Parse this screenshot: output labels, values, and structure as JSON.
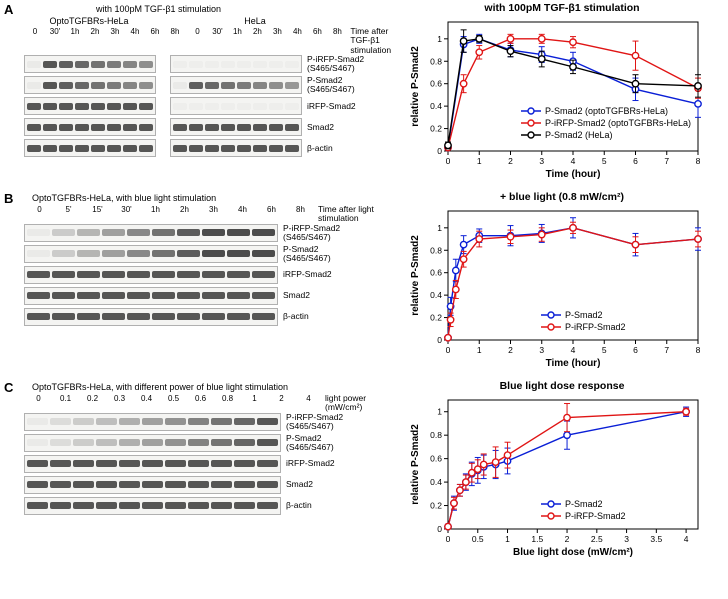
{
  "colors": {
    "blue": "#0a1fd6",
    "red": "#e01515",
    "black": "#000000",
    "grid": "#000000",
    "gelBorder": "#b0b0b0"
  },
  "A": {
    "rowLetter": "A",
    "topCaption": "with 100pM TGF-β1 stimulation",
    "subLeft": "OptoTGFBRs-HeLa",
    "subRight": "HeLa",
    "sideCaption": "Time after\nTGF-β1 stimulation",
    "lanesLeft": [
      "0",
      "30'",
      "1h",
      "2h",
      "3h",
      "4h",
      "6h",
      "8h"
    ],
    "lanesRight": [
      "0",
      "30'",
      "1h",
      "2h",
      "3h",
      "4h",
      "6h",
      "8h"
    ],
    "gelLabels": [
      "P-iRFP-Smad2\n(S465/S467)",
      "P-Smad2\n(S465/S467)",
      "iRFP-Smad2",
      "Smad2",
      "β-actin"
    ],
    "laneWidthPx": 18,
    "chart": {
      "title": "with 100pM TGF-β1 stimulation",
      "xlabel": "Time (hour)",
      "ylabel": "relative P-Smad2",
      "xlim": [
        0,
        8
      ],
      "ylim": [
        0,
        1.15
      ],
      "xticks": [
        0,
        1,
        2,
        3,
        4,
        5,
        6,
        7,
        8
      ],
      "yticks": [
        0,
        0.2,
        0.4,
        0.6,
        0.8,
        1.0
      ],
      "legend": [
        {
          "color": "blue",
          "label": "P-Smad2 (optoTGFBRs-HeLa)"
        },
        {
          "color": "red",
          "label": "P-iRFP-Smad2 (optoTGFBRs-HeLa)"
        },
        {
          "color": "black",
          "label": "P-Smad2 (HeLa)"
        }
      ],
      "series": [
        {
          "color": "blue",
          "x": [
            0,
            0.5,
            1,
            2,
            3,
            4,
            6,
            8
          ],
          "y": [
            0.03,
            0.95,
            1.0,
            0.9,
            0.86,
            0.8,
            0.55,
            0.42
          ],
          "err": [
            0.02,
            0.07,
            0.04,
            0.06,
            0.07,
            0.08,
            0.1,
            0.12
          ]
        },
        {
          "color": "red",
          "x": [
            0,
            0.5,
            1,
            2,
            3,
            4,
            6,
            8
          ],
          "y": [
            0.03,
            0.6,
            0.88,
            1.0,
            1.0,
            0.97,
            0.85,
            0.56
          ],
          "err": [
            0.02,
            0.08,
            0.06,
            0.04,
            0.04,
            0.05,
            0.13,
            0.09
          ]
        },
        {
          "color": "black",
          "x": [
            0,
            0.5,
            1,
            2,
            3,
            4,
            6,
            8
          ],
          "y": [
            0.05,
            0.98,
            1.0,
            0.89,
            0.82,
            0.75,
            0.6,
            0.58
          ],
          "err": [
            0.03,
            0.1,
            0.03,
            0.05,
            0.07,
            0.06,
            0.08,
            0.1
          ]
        }
      ]
    }
  },
  "B": {
    "rowLetter": "B",
    "topCaption": "OptoTGFBRs-HeLa, with blue light stimulation",
    "sideCaption": "Time after\nlight stimulation",
    "lanes": [
      "0",
      "5'",
      "15'",
      "30'",
      "1h",
      "2h",
      "3h",
      "4h",
      "6h",
      "8h"
    ],
    "gelLabels": [
      "P-iRFP-Smad2\n(S465/S467)",
      "P-Smad2\n(S465/S467)",
      "iRFP-Smad2",
      "Smad2",
      "β-actin"
    ],
    "laneWidthPx": 27,
    "chart": {
      "title": "+ blue light (0.8 mW/cm²)",
      "xlabel": "Time (hour)",
      "ylabel": "relative P-Smad2",
      "xlim": [
        0,
        8
      ],
      "ylim": [
        0,
        1.15
      ],
      "xticks": [
        0,
        1,
        2,
        3,
        4,
        5,
        6,
        7,
        8
      ],
      "yticks": [
        0,
        0.2,
        0.4,
        0.6,
        0.8,
        1.0
      ],
      "legend": [
        {
          "color": "blue",
          "label": "P-Smad2"
        },
        {
          "color": "red",
          "label": "P-iRFP-Smad2"
        }
      ],
      "series": [
        {
          "color": "blue",
          "x": [
            0,
            0.083,
            0.25,
            0.5,
            1,
            2,
            3,
            4,
            6,
            8
          ],
          "y": [
            0.02,
            0.3,
            0.62,
            0.85,
            0.93,
            0.93,
            0.95,
            1.0,
            0.85,
            0.9
          ],
          "err": [
            0.02,
            0.08,
            0.1,
            0.08,
            0.06,
            0.09,
            0.08,
            0.09,
            0.1,
            0.1
          ]
        },
        {
          "color": "red",
          "x": [
            0,
            0.083,
            0.25,
            0.5,
            1,
            2,
            3,
            4,
            6,
            8
          ],
          "y": [
            0.02,
            0.18,
            0.45,
            0.72,
            0.9,
            0.92,
            0.94,
            1.0,
            0.85,
            0.9
          ],
          "err": [
            0.02,
            0.06,
            0.08,
            0.07,
            0.07,
            0.06,
            0.06,
            0.05,
            0.07,
            0.07
          ]
        }
      ]
    }
  },
  "C": {
    "rowLetter": "C",
    "topCaption": "OptoTGFBRs-HeLa, with different power of blue light stimulation",
    "sideCaption": "light power\n(mW/cm²)",
    "lanes": [
      "0",
      "0.1",
      "0.2",
      "0.3",
      "0.4",
      "0.5",
      "0.6",
      "0.8",
      "1",
      "2",
      "4"
    ],
    "gelLabels": [
      "P-iRFP-Smad2\n(S465/S467)",
      "P-Smad2\n(S465/S467)",
      "iRFP-Smad2",
      "Smad2",
      "β-actin"
    ],
    "laneWidthPx": 25,
    "chart": {
      "title": "Blue light dose response",
      "xlabel": "Blue light dose (mW/cm²)",
      "ylabel": "relative P-Smad2",
      "xlim": [
        0,
        4.2
      ],
      "ylim": [
        0,
        1.1
      ],
      "xticks": [
        0,
        0.5,
        1,
        1.5,
        2,
        2.5,
        3,
        3.5,
        4
      ],
      "yticks": [
        0,
        0.2,
        0.4,
        0.6,
        0.8,
        1.0
      ],
      "legend": [
        {
          "color": "blue",
          "label": "P-Smad2"
        },
        {
          "color": "red",
          "label": "P-iRFP-Smad2"
        }
      ],
      "series": [
        {
          "color": "blue",
          "x": [
            0,
            0.1,
            0.2,
            0.3,
            0.4,
            0.5,
            0.6,
            0.8,
            1,
            2,
            4
          ],
          "y": [
            0.02,
            0.22,
            0.33,
            0.4,
            0.47,
            0.5,
            0.53,
            0.55,
            0.58,
            0.8,
            1.0
          ],
          "err": [
            0.02,
            0.06,
            0.05,
            0.07,
            0.1,
            0.11,
            0.1,
            0.12,
            0.11,
            0.12,
            0.04
          ]
        },
        {
          "color": "red",
          "x": [
            0,
            0.1,
            0.2,
            0.3,
            0.4,
            0.5,
            0.6,
            0.8,
            1,
            2,
            4
          ],
          "y": [
            0.02,
            0.22,
            0.33,
            0.4,
            0.48,
            0.51,
            0.55,
            0.57,
            0.63,
            0.95,
            1.0
          ],
          "err": [
            0.02,
            0.05,
            0.05,
            0.06,
            0.08,
            0.08,
            0.09,
            0.13,
            0.11,
            0.12,
            0.03
          ]
        }
      ]
    }
  }
}
